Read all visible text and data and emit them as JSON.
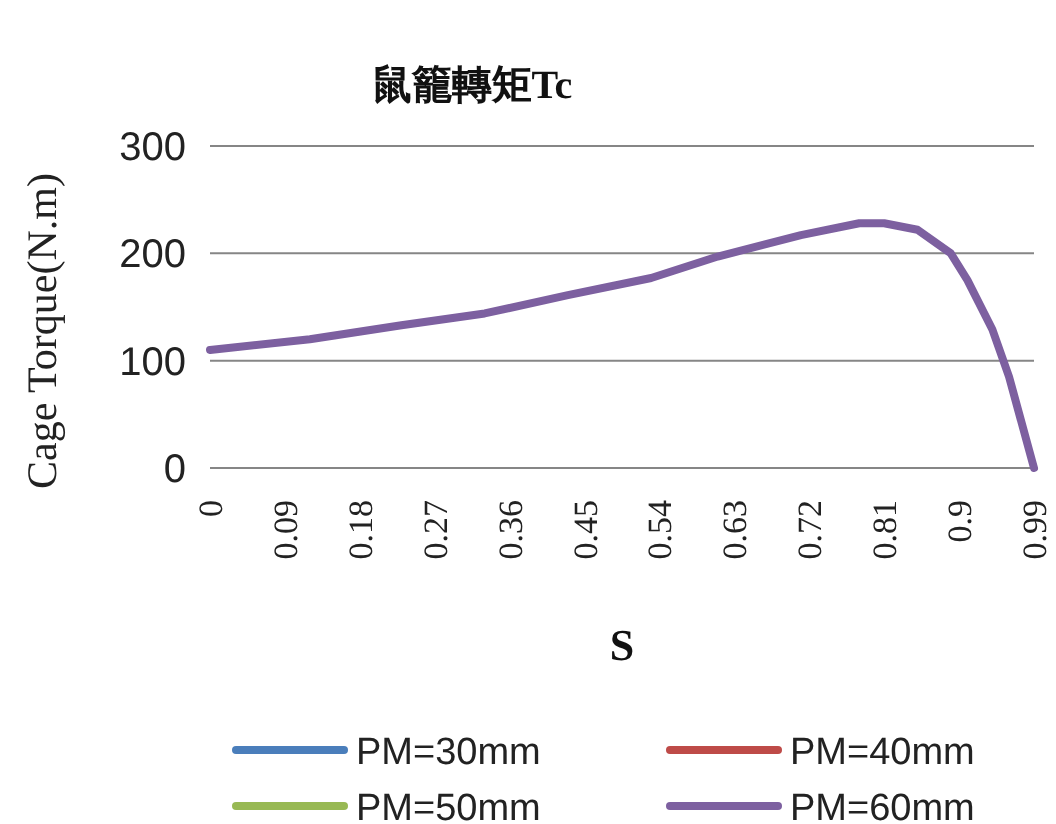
{
  "chart_data": {
    "type": "line",
    "title": "鼠籠轉矩Tc",
    "xlabel": "S",
    "ylabel": "Cage Torque(N.m)",
    "x": [
      0,
      0.12,
      0.23,
      0.33,
      0.43,
      0.53,
      0.61,
      0.71,
      0.78,
      0.81,
      0.85,
      0.89,
      0.91,
      0.94,
      0.96,
      0.99
    ],
    "xlim": [
      0,
      0.99
    ],
    "xticks": [
      0,
      0.09,
      0.18,
      0.27,
      0.36,
      0.45,
      0.54,
      0.63,
      0.72,
      0.81,
      0.9,
      0.99
    ],
    "ylim": [
      0,
      300
    ],
    "yticks": [
      0,
      100,
      200,
      300
    ],
    "grid": "y",
    "legend": "bottom",
    "marker": "none",
    "line_style": "solid",
    "series": [
      {
        "name": "PM=30mm",
        "color": "#4a7ebb",
        "values": [
          null,
          null,
          null,
          null,
          null,
          null,
          null,
          null,
          null,
          null,
          null,
          null,
          null,
          null,
          null,
          null
        ]
      },
      {
        "name": "PM=40mm",
        "color": "#be4b48",
        "values": [
          null,
          null,
          null,
          null,
          null,
          null,
          null,
          null,
          null,
          null,
          null,
          null,
          null,
          null,
          null,
          null
        ]
      },
      {
        "name": "PM=50mm",
        "color": "#98b954",
        "values": [
          null,
          null,
          null,
          null,
          null,
          null,
          null,
          null,
          null,
          null,
          null,
          null,
          null,
          null,
          null,
          null
        ]
      },
      {
        "name": "PM=60mm",
        "color": "#7d60a0",
        "values": [
          110,
          120,
          133,
          144,
          161,
          177,
          197,
          217,
          228,
          228,
          222,
          200,
          175,
          129,
          85,
          0
        ]
      }
    ]
  }
}
